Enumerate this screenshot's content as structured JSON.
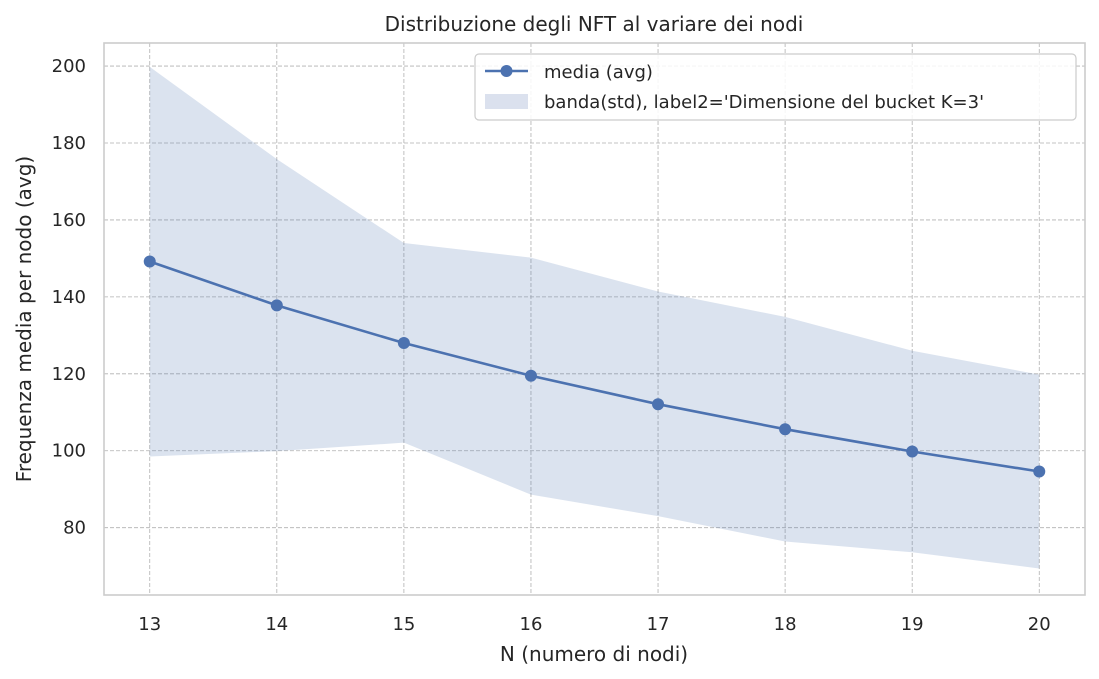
{
  "chart_data": {
    "type": "line",
    "title": "Distribuzione degli NFT al variare dei nodi",
    "xlabel": "N (numero di nodi)",
    "ylabel": "Frequenza media per nodo (avg)",
    "x": [
      13,
      14,
      15,
      16,
      17,
      18,
      19,
      20
    ],
    "xlim": [
      12.64,
      20.36
    ],
    "ylim": [
      62.5,
      206
    ],
    "yticks": [
      80,
      100,
      120,
      140,
      160,
      180,
      200
    ],
    "grid": true,
    "legend_position": "top-right",
    "series": [
      {
        "name": "media (avg)",
        "kind": "line-marker",
        "color": "#4c72b0",
        "values": [
          149.2,
          137.8,
          128.0,
          119.5,
          112.1,
          105.6,
          99.8,
          94.6
        ]
      },
      {
        "name": "banda(std), label2='Dimensione del bucket K=3'",
        "kind": "band",
        "color": "#4c72b0",
        "opacity": 0.2,
        "lower": [
          98.5,
          99.9,
          102.1,
          88.6,
          83.0,
          76.4,
          73.6,
          69.4
        ],
        "upper": [
          199.8,
          175.8,
          154.0,
          150.2,
          141.4,
          134.8,
          126.0,
          119.8
        ]
      }
    ]
  }
}
